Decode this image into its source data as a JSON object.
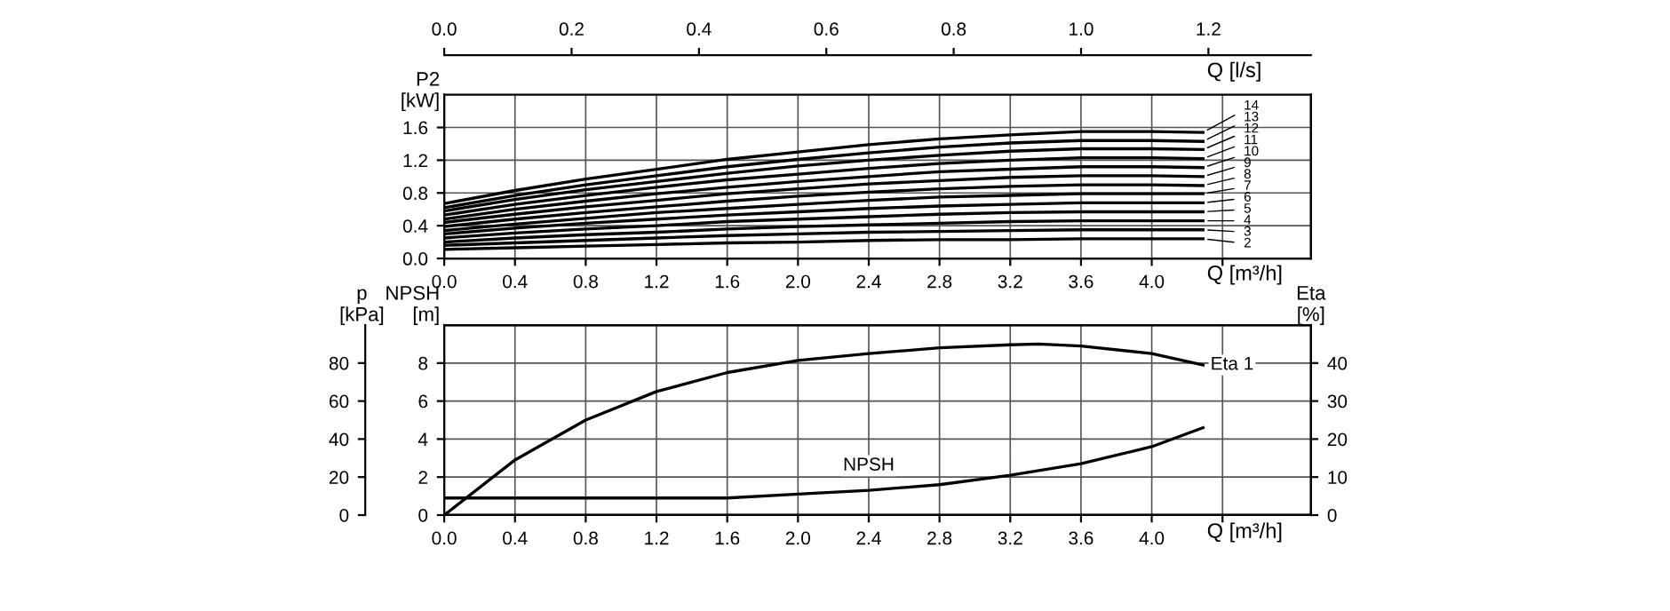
{
  "chart_data": [
    {
      "type": "line",
      "xlabel": "Q [m³/h]",
      "ylabel": "P2\n[kW]",
      "x2label": "Q [l/s]",
      "x": [
        0,
        0.4,
        0.8,
        1.2,
        1.6,
        2.0,
        2.4,
        2.8,
        3.2,
        3.6,
        4.0,
        4.29
      ],
      "series": [
        {
          "name": "14",
          "color": "#000000",
          "values": [
            0.67,
            0.83,
            0.97,
            1.09,
            1.21,
            1.3,
            1.39,
            1.46,
            1.51,
            1.55,
            1.55,
            1.54
          ]
        },
        {
          "name": "13",
          "color": "#000000",
          "values": [
            0.62,
            0.77,
            0.9,
            1.01,
            1.12,
            1.21,
            1.29,
            1.36,
            1.41,
            1.44,
            1.44,
            1.43
          ]
        },
        {
          "name": "12",
          "color": "#000000",
          "values": [
            0.58,
            0.72,
            0.84,
            0.94,
            1.04,
            1.13,
            1.2,
            1.26,
            1.31,
            1.34,
            1.34,
            1.33
          ]
        },
        {
          "name": "11",
          "color": "#000000",
          "values": [
            0.53,
            0.66,
            0.77,
            0.87,
            0.96,
            1.03,
            1.1,
            1.16,
            1.2,
            1.23,
            1.23,
            1.22
          ]
        },
        {
          "name": "10",
          "color": "#000000",
          "values": [
            0.48,
            0.6,
            0.7,
            0.79,
            0.87,
            0.94,
            1.0,
            1.06,
            1.09,
            1.12,
            1.12,
            1.11
          ]
        },
        {
          "name": "9",
          "color": "#000000",
          "values": [
            0.44,
            0.54,
            0.63,
            0.71,
            0.79,
            0.85,
            0.91,
            0.95,
            0.99,
            1.01,
            1.01,
            1.0
          ]
        },
        {
          "name": "8",
          "color": "#000000",
          "values": [
            0.39,
            0.48,
            0.56,
            0.63,
            0.7,
            0.76,
            0.81,
            0.85,
            0.88,
            0.9,
            0.9,
            0.89
          ]
        },
        {
          "name": "7",
          "color": "#000000",
          "values": [
            0.34,
            0.42,
            0.49,
            0.56,
            0.61,
            0.66,
            0.71,
            0.75,
            0.77,
            0.79,
            0.79,
            0.79
          ]
        },
        {
          "name": "6",
          "color": "#000000",
          "values": [
            0.3,
            0.37,
            0.43,
            0.48,
            0.53,
            0.57,
            0.61,
            0.64,
            0.66,
            0.68,
            0.68,
            0.68
          ]
        },
        {
          "name": "5",
          "color": "#000000",
          "values": [
            0.25,
            0.31,
            0.36,
            0.4,
            0.45,
            0.48,
            0.51,
            0.54,
            0.56,
            0.57,
            0.57,
            0.57
          ]
        },
        {
          "name": "4",
          "color": "#000000",
          "values": [
            0.2,
            0.25,
            0.29,
            0.32,
            0.36,
            0.39,
            0.41,
            0.43,
            0.45,
            0.46,
            0.46,
            0.46
          ]
        },
        {
          "name": "3",
          "color": "#000000",
          "values": [
            0.16,
            0.19,
            0.22,
            0.25,
            0.28,
            0.3,
            0.32,
            0.33,
            0.34,
            0.35,
            0.35,
            0.35
          ]
        },
        {
          "name": "2",
          "color": "#000000",
          "values": [
            0.11,
            0.13,
            0.15,
            0.17,
            0.19,
            0.2,
            0.22,
            0.23,
            0.23,
            0.24,
            0.24,
            0.24
          ]
        }
      ],
      "xlim": [
        0,
        4.9
      ],
      "xticks": [
        {
          "value": 0,
          "label": "0.0"
        },
        0.4,
        0.8,
        1.2,
        1.6,
        {
          "value": 2.0,
          "label": "2.0"
        },
        2.4,
        2.8,
        3.2,
        3.6,
        {
          "value": 4.0,
          "label": "4.0"
        },
        {
          "value": 4.4,
          "label": null
        }
      ],
      "x2lim": [
        0,
        1.361
      ],
      "x2ticks": [
        {
          "value": 0,
          "label": "0.0"
        },
        0.2,
        0.4,
        0.6,
        0.8,
        {
          "value": 1.0,
          "label": "1.0"
        },
        1.2
      ],
      "ylim": [
        0,
        2.0
      ],
      "yticks": [
        {
          "value": 0,
          "label": "0.0"
        },
        0.4,
        0.8,
        1.2,
        1.6
      ],
      "grid": true,
      "legend": "right",
      "marker": "none",
      "line_style": "solid"
    },
    {
      "type": "line",
      "xlabel": "Q [m³/h]",
      "ylabel": "NPSH\n[m]",
      "y2label": "Eta\n[%]",
      "y3label": "p\n[kPa]",
      "series": [
        {
          "name": "Eta 1",
          "color": "#000000",
          "axis": "y2",
          "x": [
            0,
            0.4,
            0.8,
            1.2,
            1.6,
            2.0,
            2.4,
            2.8,
            3.2,
            3.36,
            3.6,
            4.0,
            4.29
          ],
          "values": [
            0,
            14.5,
            25,
            32.5,
            37.5,
            40.7,
            42.5,
            44,
            44.8,
            45,
            44.5,
            42.5,
            39.5
          ]
        },
        {
          "name": "NPSH",
          "color": "#000000",
          "x": [
            0,
            0.4,
            0.8,
            1.2,
            1.6,
            2.0,
            2.4,
            2.8,
            3.2,
            3.6,
            4.0,
            4.29
          ],
          "values": [
            0.9,
            0.9,
            0.9,
            0.9,
            0.9,
            1.1,
            1.3,
            1.6,
            2.1,
            2.7,
            3.6,
            4.6
          ]
        }
      ],
      "xlim": [
        0,
        4.9
      ],
      "xticks": [
        {
          "value": 0,
          "label": "0.0"
        },
        0.4,
        0.8,
        1.2,
        1.6,
        {
          "value": 2.0,
          "label": "2.0"
        },
        2.4,
        2.8,
        3.2,
        3.6,
        {
          "value": 4.0,
          "label": "4.0"
        },
        {
          "value": 4.4,
          "label": null
        }
      ],
      "ylim": [
        0,
        10
      ],
      "yticks": [
        0,
        2,
        4,
        6,
        8
      ],
      "y2lim": [
        0,
        50
      ],
      "y2ticks": [
        0,
        10,
        20,
        30,
        40
      ],
      "y3lim": [
        0,
        100
      ],
      "y3ticks": [
        0,
        20,
        40,
        60,
        80
      ],
      "grid": true,
      "legend": false,
      "marker": "none",
      "line_style": "solid"
    }
  ]
}
